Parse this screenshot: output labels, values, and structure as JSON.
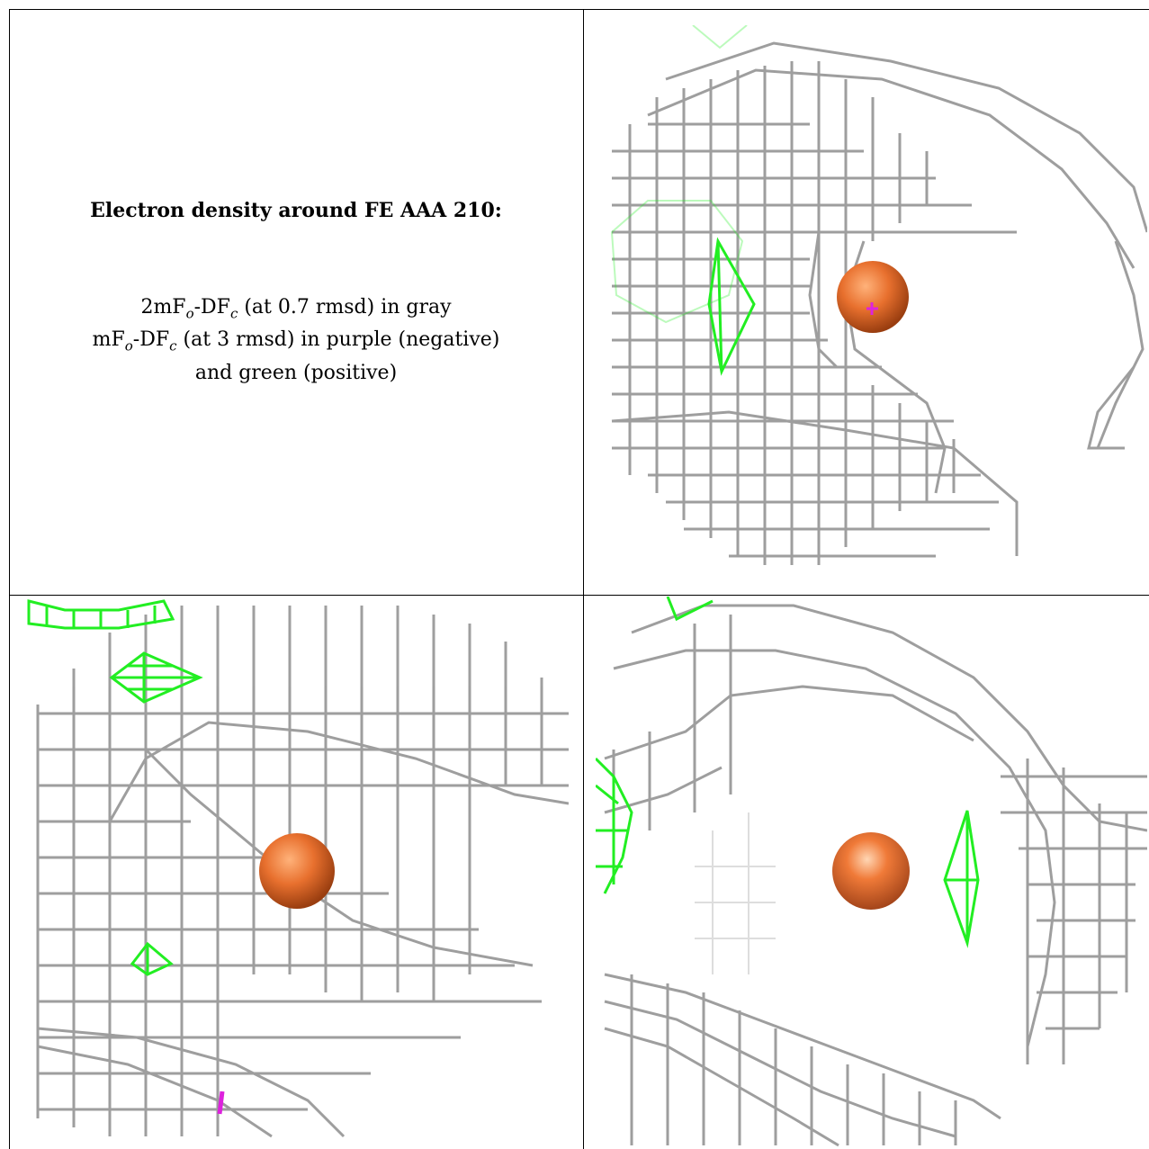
{
  "caption": {
    "title": "Electron density around FE AAA 210:",
    "line1_prefix": "2mF",
    "line1_sub1": "o",
    "line1_mid": "-DF",
    "line1_sub2": "c",
    "line1_suffix": " (at 0.7 rmsd) in gray",
    "line2_prefix": "mF",
    "line2_sub1": "o",
    "line2_mid": "-DF",
    "line2_sub2": "c",
    "line2_suffix": " (at 3 rmsd) in purple (negative)",
    "line3": "and green (positive)"
  },
  "colors": {
    "map_2fofc": "#9a9a9a",
    "map_pos": "#22ee22",
    "map_neg": "#dd22dd",
    "fe_atom": "#e8702e"
  },
  "panels": [
    {
      "view": "view-1",
      "icon": "fe-atom-sphere"
    },
    {
      "view": "view-2",
      "icon": "fe-atom-sphere"
    },
    {
      "view": "view-3",
      "icon": "fe-atom-sphere"
    }
  ]
}
